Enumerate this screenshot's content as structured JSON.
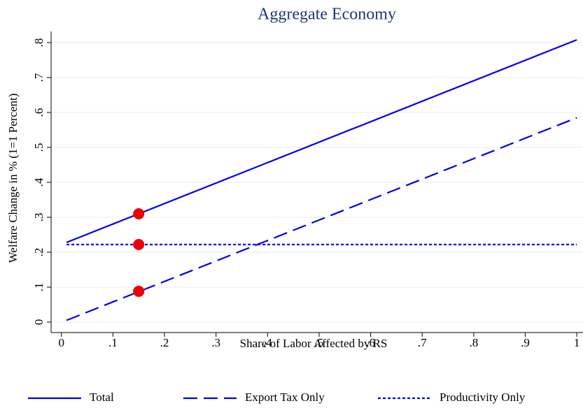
{
  "chart_data": {
    "type": "line",
    "title": "Aggregate Economy",
    "xlabel": "Share of Labor Affected by RS",
    "ylabel": "Welfare Change in % (1=1 Percent)",
    "x": [
      0.01,
      1
    ],
    "series": [
      {
        "name": "Total",
        "color": "#0000ee",
        "style": "solid",
        "values": [
          0.228,
          0.808
        ]
      },
      {
        "name": "Export Tax Only",
        "color": "#0000ee",
        "style": "dashed",
        "values": [
          0.005,
          0.585
        ]
      },
      {
        "name": "Productivity Only",
        "color": "#0000ee",
        "style": "dotted",
        "values": [
          0.222,
          0.222
        ]
      }
    ],
    "markers": {
      "color": "#ee0000",
      "x": [
        0.15,
        0.15,
        0.15
      ],
      "values": [
        0.31,
        0.222,
        0.088
      ]
    },
    "xlim": [
      -0.02,
      1.012
    ],
    "ylim": [
      -0.03,
      0.832
    ],
    "xticks": [
      0,
      {
        "value": 0.1,
        "label": ".1"
      },
      {
        "value": 0.2,
        "label": ".2"
      },
      {
        "value": 0.3,
        "label": ".3"
      },
      {
        "value": 0.4,
        "label": ".4"
      },
      {
        "value": 0.5,
        "label": ".5"
      },
      {
        "value": 0.6,
        "label": ".6"
      },
      {
        "value": 0.7,
        "label": ".7"
      },
      {
        "value": 0.8,
        "label": ".8"
      },
      {
        "value": 0.9,
        "label": ".9"
      },
      1
    ],
    "yticks": [
      0,
      {
        "value": 0.1,
        "label": ".1"
      },
      {
        "value": 0.2,
        "label": ".2"
      },
      {
        "value": 0.3,
        "label": ".3"
      },
      {
        "value": 0.4,
        "label": ".4"
      },
      {
        "value": 0.5,
        "label": ".5"
      },
      {
        "value": 0.6,
        "label": ".6"
      },
      {
        "value": 0.7,
        "label": ".7"
      },
      {
        "value": 0.8,
        "label": ".8"
      }
    ],
    "grid": true,
    "legend": "bottom"
  }
}
